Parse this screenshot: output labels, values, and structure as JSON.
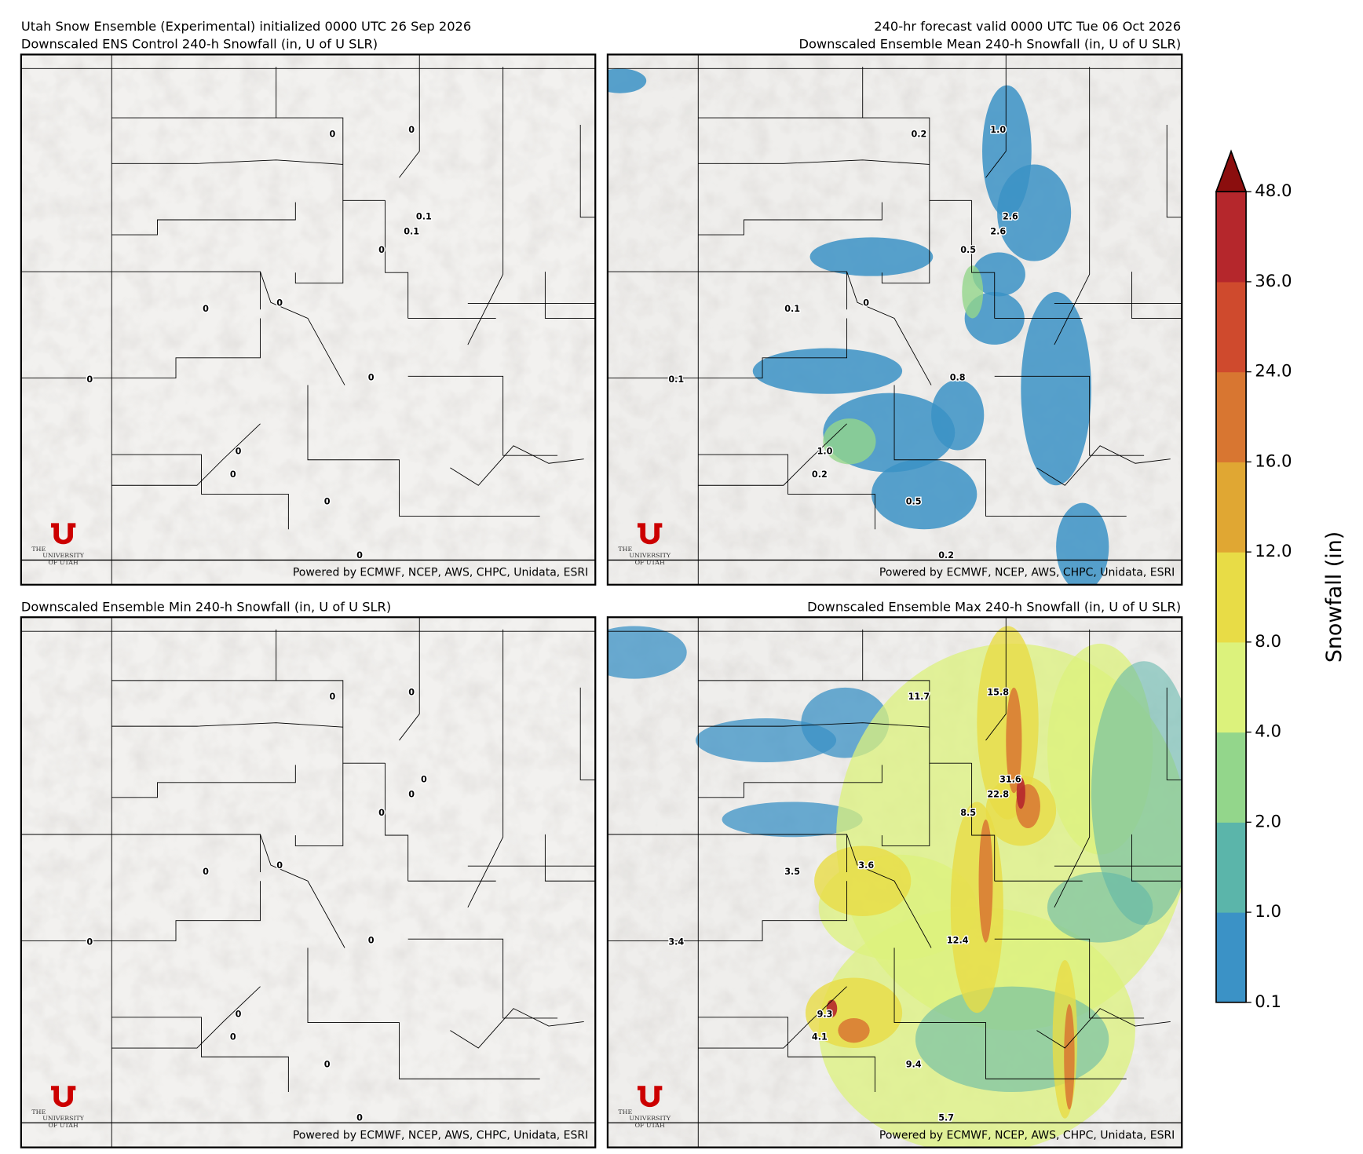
{
  "header": {
    "left_line1": "Utah Snow Ensemble (Experimental) initialized 0000 UTC 26 Sep 2026",
    "right_line1": "240-hr forecast valid 0000 UTC Tue 06 Oct 2026"
  },
  "logo": {
    "line1": "THE",
    "line2": "UNIVERSITY",
    "line3": "OF UTAH"
  },
  "panels": [
    {
      "title": "Downscaled ENS Control 240-h Snowfall (in, U of U SLR)",
      "credit": "Powered by ECMWF, NCEP, AWS, CHPC, Unidata, ESRI",
      "points": [
        "0",
        "0",
        "0.1",
        "0.1",
        "0",
        "0",
        "0",
        "0",
        "0",
        "0",
        "0",
        "0",
        "0"
      ]
    },
    {
      "title": "Downscaled Ensemble Mean 240-h Snowfall (in, U of U SLR)",
      "credit": "Powered by ECMWF, NCEP, AWS, CHPC, Unidata, ESRI",
      "points": [
        "0.2",
        "1.0",
        "2.6",
        "2.6",
        "0.5",
        "0",
        "0.1",
        "0.1",
        "0.8",
        "1.0",
        "0.2",
        "0.5",
        "0.2"
      ]
    },
    {
      "title": "Downscaled Ensemble Min 240-h Snowfall (in, U of U SLR)",
      "credit": "Powered by ECMWF, NCEP, AWS, CHPC, Unidata, ESRI",
      "points": [
        "0",
        "0",
        "0",
        "0",
        "0",
        "0",
        "0",
        "0",
        "0",
        "0",
        "0",
        "0",
        "0"
      ]
    },
    {
      "title": "Downscaled Ensemble Max 240-h Snowfall (in, U of U SLR)",
      "credit": "Powered by ECMWF, NCEP, AWS, CHPC, Unidata, ESRI",
      "points": [
        "11.7",
        "15.8",
        "31.6",
        "22.8",
        "8.5",
        "3.6",
        "3.5",
        "3.4",
        "12.4",
        "9.3",
        "4.1",
        "9.4",
        "5.7"
      ]
    }
  ],
  "colorbar": {
    "label": "Snowfall (in)",
    "ticks": [
      "0.1",
      "1.0",
      "2.0",
      "4.0",
      "8.0",
      "12.0",
      "16.0",
      "24.0",
      "36.0",
      "48.0"
    ],
    "colors": [
      "#3b92c6",
      "#5bb5aa",
      "#93d68b",
      "#dcf27c",
      "#e8dc46",
      "#e0a733",
      "#d87631",
      "#cf4a2d",
      "#b5272c"
    ],
    "extend_color": "#8b0e0e"
  }
}
